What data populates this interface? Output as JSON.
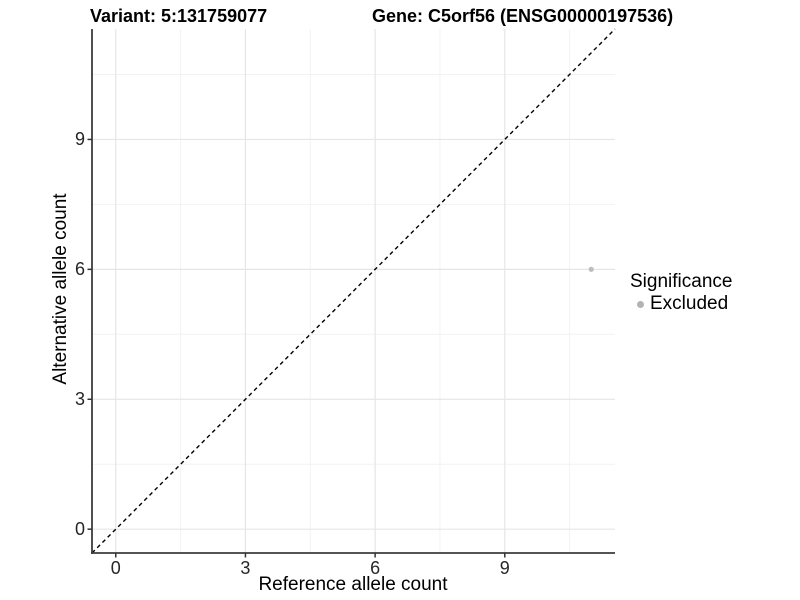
{
  "chart_data": {
    "type": "scatter",
    "titles": {
      "left": "Variant: 5:131759077",
      "right": "Gene: C5orf56 (ENSG00000197536)"
    },
    "xlabel": "Reference allele count",
    "ylabel": "Alternative allele count",
    "xlim": [
      -0.55,
      11.55
    ],
    "ylim": [
      -0.55,
      11.55
    ],
    "xticks": [
      0,
      3,
      6,
      9
    ],
    "yticks": [
      0,
      3,
      6,
      9
    ],
    "xminor": [
      1.5,
      4.5,
      7.5,
      10.5
    ],
    "yminor": [
      1.5,
      4.5,
      7.5,
      10.5
    ],
    "grid": "major and minor, light grey on white",
    "reference_line": {
      "kind": "identity y=x",
      "style": "dashed",
      "color": "#000000"
    },
    "series": [
      {
        "name": "Excluded",
        "color": "#bdbdbd",
        "points": [
          {
            "x": 11,
            "y": 6
          }
        ]
      }
    ],
    "legend": {
      "title": "Significance",
      "position": "right",
      "entries": [
        {
          "label": "Excluded",
          "color": "#b3b3b3"
        }
      ]
    }
  },
  "style": {
    "grid_major_color": "#e6e6e6",
    "grid_minor_color": "#f2f2f2",
    "axis_line_color": "#3c3c3c",
    "tick_mark_color": "#333333",
    "tick_label_color": "#262626",
    "dashed_line_color": "#000000"
  }
}
